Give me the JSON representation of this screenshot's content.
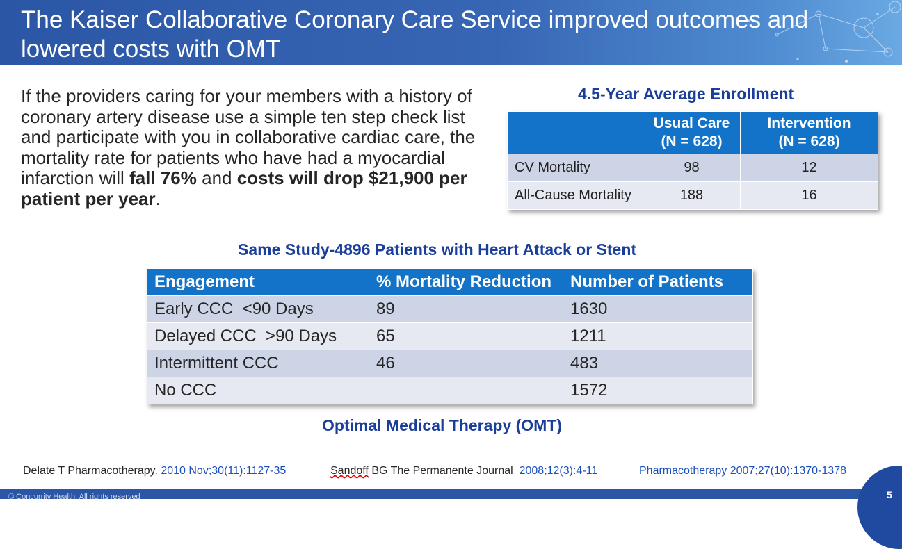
{
  "header": {
    "title": "The Kaiser Collaborative Coronary Care Service improved outcomes and lowered costs with OMT"
  },
  "intro": {
    "part1": "If the providers caring for your members with a history of coronary artery disease use a simple ten step check list and participate with you in collaborative cardiac care, the mortality rate for patients who have had a myocardial infarction will ",
    "bold1": "fall 76%",
    "part2": " and ",
    "bold2": "costs will drop $21,900 per patient per year",
    "part3": "."
  },
  "enrollment": {
    "title": "4.5-Year Average Enrollment",
    "headers": [
      "",
      "Usual Care\n(N = 628)",
      "Intervention\n(N = 628)"
    ],
    "header_lines": [
      [
        "Usual Care",
        "(N = 628)"
      ],
      [
        "Intervention",
        "(N = 628)"
      ]
    ],
    "rows": [
      {
        "label": "CV Mortality",
        "usual": "98",
        "intervention": "12"
      },
      {
        "label": "All-Cause Mortality",
        "usual": "188",
        "intervention": "16"
      }
    ]
  },
  "study": {
    "title": "Same Study-4896 Patients with Heart Attack or Stent",
    "headers": [
      "Engagement",
      "% Mortality Reduction",
      "Number of Patients"
    ],
    "rows": [
      {
        "engagement": "Early CCC  <90 Days",
        "reduction": "89",
        "patients": "1630"
      },
      {
        "engagement": "Delayed CCC  >90 Days",
        "reduction": "65",
        "patients": "1211"
      },
      {
        "engagement": "Intermittent CCC",
        "reduction": "46",
        "patients": "483"
      },
      {
        "engagement": "No CCC",
        "reduction": "",
        "patients": "1572"
      }
    ]
  },
  "omt_caption": "Optimal Medical Therapy (OMT)",
  "references": {
    "ref1_text": "Delate T Pharmacotherapy. ",
    "ref1_link": "2010 Nov;30(11):1127-35",
    "ref2_author": "Sandoff",
    "ref2_text": " BG The Permanente Journal  ",
    "ref2_link": "2008;12(3):4-11",
    "ref3_link": "Pharmacotherapy 2007;27(10):1370-1378"
  },
  "footer": {
    "copyright": "© Concurrity Health. All rights reserved",
    "page_number": "5"
  },
  "colors": {
    "header_blue": "#2b56a6",
    "table_header": "#1273c8",
    "row_dark": "#cdd4e6",
    "row_light": "#e6e9f2",
    "title_blue": "#1a3e9a"
  }
}
